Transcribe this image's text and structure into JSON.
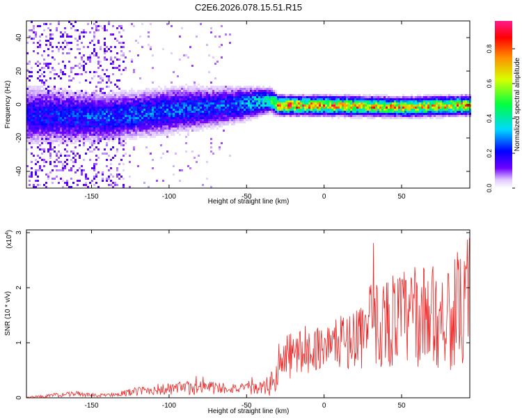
{
  "title": "C2E6.2026.078.15.51.R15",
  "chart_data": [
    {
      "type": "heatmap",
      "title": "C2E6.2026.078.15.51.R15",
      "xlabel": "Height of straight line (km)",
      "ylabel": "Frequency (Hz)",
      "xlim": [
        -192,
        94
      ],
      "ylim": [
        -50,
        50
      ],
      "xticks": [
        -150,
        -100,
        -50,
        0,
        50
      ],
      "yticks": [
        40,
        20,
        0,
        -20,
        -40
      ],
      "colorbar": {
        "label": "Normalized spectral amplitude",
        "range": [
          0,
          0.96
        ],
        "ticks": [
          0,
          0.2,
          0.4,
          0.6,
          0.8
        ]
      },
      "description_points": [
        {
          "x": -180,
          "center_hz": -6,
          "spread_hz": 12,
          "amplitude": 0.25
        },
        {
          "x": -140,
          "center_hz": -7,
          "spread_hz": 10,
          "amplitude": 0.3
        },
        {
          "x": -100,
          "center_hz": -3,
          "spread_hz": 10,
          "amplitude": 0.3
        },
        {
          "x": -60,
          "center_hz": 0,
          "spread_hz": 8,
          "amplitude": 0.3
        },
        {
          "x": -35,
          "center_hz": 3,
          "spread_hz": 5,
          "amplitude": 0.5
        },
        {
          "x": -30,
          "center_hz": 0,
          "spread_hz": 4,
          "amplitude": 0.9
        },
        {
          "x": 0,
          "center_hz": 0,
          "spread_hz": 4,
          "amplitude": 0.85
        },
        {
          "x": 50,
          "center_hz": -1,
          "spread_hz": 4,
          "amplitude": 0.8
        },
        {
          "x": 90,
          "center_hz": 0,
          "spread_hz": 4,
          "amplitude": 0.8
        }
      ]
    },
    {
      "type": "line",
      "xlabel": "Height of straight line (km)",
      "ylabel": "SNR (10 * v/v)",
      "y_multiplier_label": "(x10",
      "y_multiplier_exp": "4",
      "xlim": [
        -192,
        94
      ],
      "ylim": [
        0,
        3.05
      ],
      "xticks": [
        -150,
        -100,
        -50,
        0,
        50
      ],
      "yticks": [
        0,
        1,
        2,
        3
      ],
      "series": [
        {
          "name": "SNR",
          "color": "#ee2222",
          "x": [
            -190,
            -170,
            -160,
            -150,
            -140,
            -130,
            -120,
            -110,
            -100,
            -90,
            -80,
            -70,
            -60,
            -50,
            -40,
            -35,
            -30,
            -25,
            -20,
            -10,
            0,
            10,
            20,
            30,
            40,
            50,
            60,
            70,
            80,
            90,
            94
          ],
          "y": [
            0.01,
            0.05,
            0.08,
            0.04,
            0.05,
            0.08,
            0.12,
            0.15,
            0.15,
            0.17,
            0.2,
            0.18,
            0.18,
            0.16,
            0.18,
            0.22,
            0.45,
            0.7,
            0.8,
            0.85,
            0.95,
            1.0,
            1.1,
            1.3,
            1.4,
            1.45,
            1.45,
            1.5,
            1.5,
            1.55,
            1.5
          ],
          "noise_amplitude": [
            0.02,
            0.04,
            0.05,
            0.03,
            0.03,
            0.05,
            0.08,
            0.1,
            0.12,
            0.13,
            0.15,
            0.12,
            0.1,
            0.1,
            0.12,
            0.2,
            0.4,
            0.45,
            0.45,
            0.4,
            0.4,
            0.45,
            0.6,
            0.8,
            0.85,
            0.9,
            0.9,
            0.95,
            1.0,
            1.05,
            1.0
          ]
        }
      ]
    }
  ]
}
